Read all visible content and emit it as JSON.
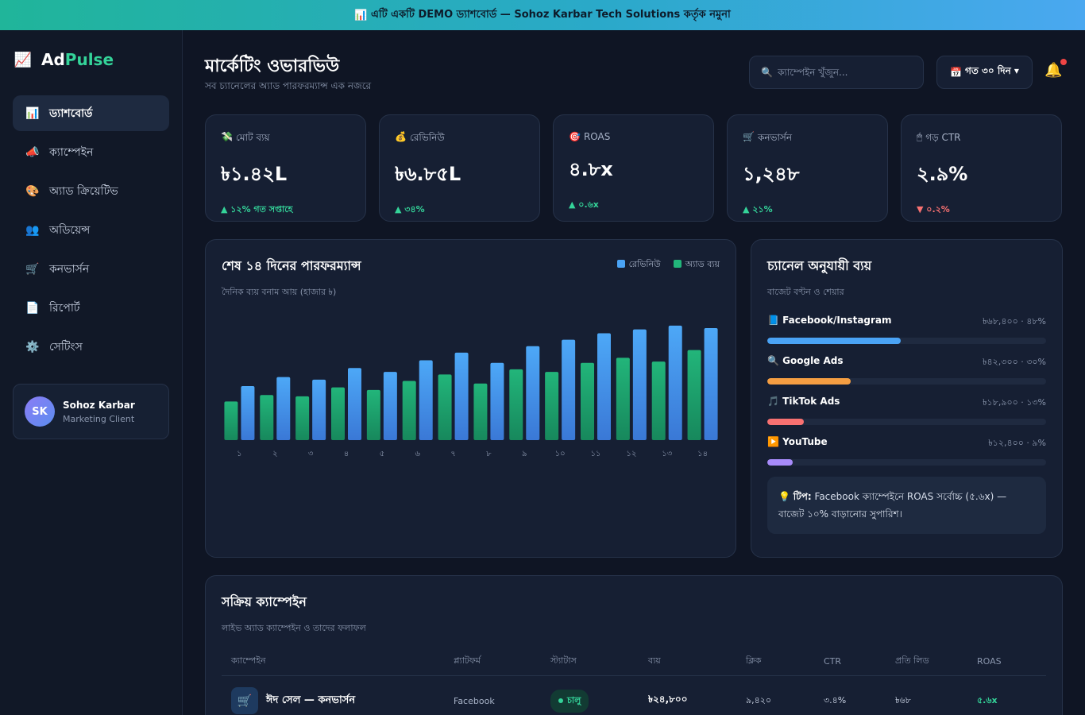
{
  "banner": {
    "icon": "📊",
    "text": "এটি একটি DEMO ড্যাশবোর্ড — Sohoz Karbar Tech Solutions কর্তৃক নমুনা"
  },
  "brand": {
    "icon": "📈",
    "ad": "Ad",
    "pulse": "Pulse"
  },
  "sidebar": {
    "items": [
      {
        "icon": "📊",
        "label": "ড্যাশবোর্ড",
        "active": true
      },
      {
        "icon": "📣",
        "label": "ক্যাম্পেইন"
      },
      {
        "icon": "🎨",
        "label": "অ্যাড ক্রিয়েটিভ"
      },
      {
        "icon": "👥",
        "label": "অডিয়েন্স"
      },
      {
        "icon": "🛒",
        "label": "কনভার্সন"
      },
      {
        "icon": "📄",
        "label": "রিপোর্ট"
      },
      {
        "icon": "⚙️",
        "label": "সেটিংস"
      }
    ],
    "user": {
      "initials": "SK",
      "name": "Sohoz Karbar",
      "role": "Marketing Client"
    }
  },
  "header": {
    "title": "মার্কেটিং ওভারভিউ",
    "subtitle": "সব চ্যানেলের অ্যাড পারফরম্যান্স এক নজরে",
    "search_icon": "🔍",
    "search_placeholder": "ক্যাম্পেইন খুঁজুন...",
    "range_icon": "📅",
    "range_label": "গত ৩০ দিন ▾"
  },
  "kpis": [
    {
      "icon": "💸",
      "label": "মোট ব্যয়",
      "value": "৳১.৪২L",
      "delta": "▲ ১২% গত সপ্তাহে",
      "trend": "up"
    },
    {
      "icon": "💰",
      "label": "রেভিনিউ",
      "value": "৳৬.৮৫L",
      "delta": "▲ ৩৪%",
      "trend": "up"
    },
    {
      "icon": "🎯",
      "label": "ROAS",
      "value": "৪.৮x",
      "delta": "▲ ০.৬x",
      "trend": "up"
    },
    {
      "icon": "🛒",
      "label": "কনভার্সন",
      "value": "১,২৪৮",
      "delta": "▲ ২১%",
      "trend": "up"
    },
    {
      "icon": "🖱",
      "label": "গড় CTR",
      "value": "২.৯%",
      "delta": "▼ ০.২%",
      "trend": "down"
    }
  ],
  "performance": {
    "title": "শেষ ১৪ দিনের পারফরম্যান্স",
    "subtitle": "দৈনিক ব্যয় বনাম আয় (হাজার ৳)",
    "legend": [
      {
        "name": "রেভিনিউ",
        "color": "#4aa3f5"
      },
      {
        "name": "অ্যাড ব্যয়",
        "color": "#22b57a"
      }
    ]
  },
  "chart_data": {
    "type": "bar",
    "categories": [
      "১",
      "২",
      "৩",
      "৪",
      "৫",
      "৬",
      "৭",
      "৮",
      "৯",
      "১০",
      "১১",
      "১২",
      "১৩",
      "১৪"
    ],
    "series": [
      {
        "name": "অ্যাড ব্যয়",
        "values": [
          30,
          35,
          34,
          41,
          39,
          46,
          51,
          44,
          55,
          53,
          60,
          64,
          61,
          70
        ]
      },
      {
        "name": "রেভিনিউ",
        "values": [
          42,
          49,
          47,
          56,
          53,
          62,
          68,
          60,
          73,
          78,
          83,
          86,
          89,
          87
        ]
      }
    ],
    "ylim": [
      0,
      100
    ]
  },
  "channels": {
    "title": "চ্যানেল অনুযায়ী ব্যয়",
    "subtitle": "বাজেট বণ্টন ও শেয়ার",
    "items": [
      {
        "icon": "📘",
        "name": "Facebook/Instagram",
        "value": "৳৬৮,৪০০ · ৪৮%",
        "share": 0.48,
        "color": "#4aa3f5"
      },
      {
        "icon": "🔍",
        "name": "Google Ads",
        "value": "৳৪২,৩০০ · ৩০%",
        "share": 0.3,
        "color": "#f59e42"
      },
      {
        "icon": "🎵",
        "name": "TikTok Ads",
        "value": "৳১৮,৯০০ · ১৩%",
        "share": 0.13,
        "color": "#f87171"
      },
      {
        "icon": "▶️",
        "name": "YouTube",
        "value": "৳১২,৪০০ · ৯%",
        "share": 0.09,
        "color": "#a78bfa"
      }
    ],
    "tip_icon": "💡",
    "tip_label": "টিপ:",
    "tip_text": "Facebook ক্যাম্পেইনে ROAS সর্বোচ্চ (৫.৬x) — বাজেট ১০% বাড়ানোর সুপারিশ।"
  },
  "campaigns": {
    "title": "সক্রিয় ক্যাম্পেইন",
    "subtitle": "লাইভ অ্যাড ক্যাম্পেইন ও তাদের ফলাফল",
    "columns": [
      "ক্যাম্পেইন",
      "প্ল্যাটফর্ম",
      "স্ট্যাটাস",
      "ব্যয়",
      "ক্লিক",
      "CTR",
      "প্রতি লিড",
      "ROAS"
    ],
    "rows": [
      {
        "icon": "🛒",
        "name": "ঈদ সেল — কনভার্সন",
        "platform": "Facebook",
        "status": "চালু",
        "spend": "৳২৪,৮০০",
        "clicks": "৯,৪২০",
        "ctr": "৩.৪%",
        "cpl": "৳৬৮",
        "roas": "৫.৬x"
      }
    ]
  }
}
